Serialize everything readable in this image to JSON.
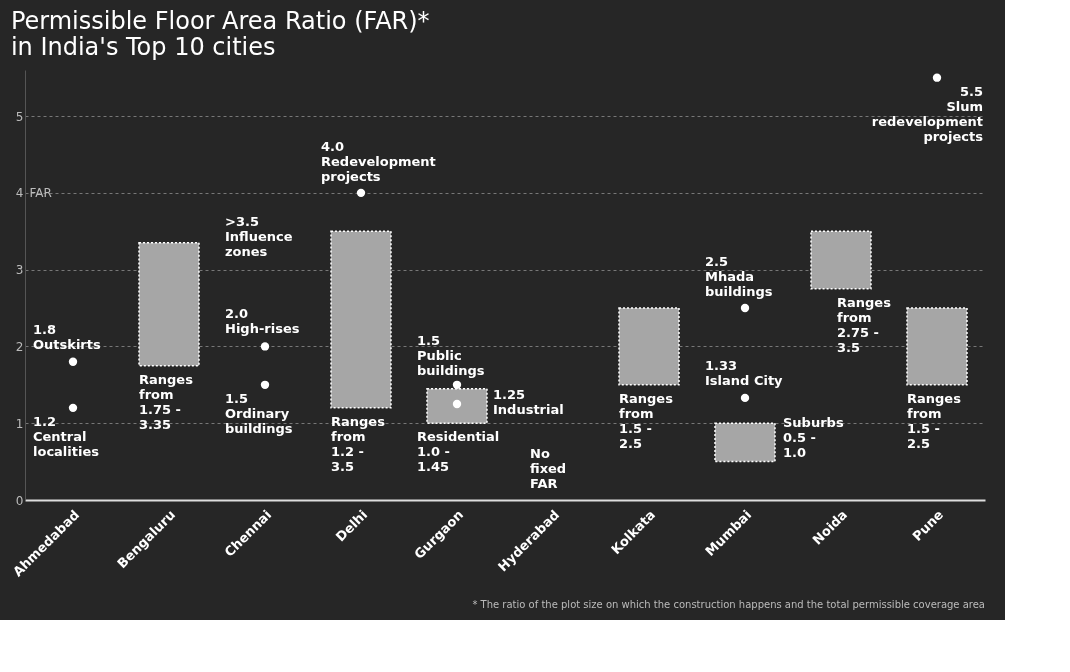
{
  "chart_data": {
    "type": "bar",
    "title": "Permissible Floor Area Ratio (FAR)*\nin India's Top 10 cities",
    "ylabel": "FAR",
    "categories": [
      "Ahmedabad",
      "Bengaluru",
      "Chennai",
      "Delhi",
      "Gurgaon",
      "Hyderabad",
      "Kolkata",
      "Mumbai",
      "Noida",
      "Pune"
    ],
    "series": [
      {
        "type": "bar",
        "base": [
          null,
          1.75,
          null,
          1.2,
          1.0,
          null,
          1.5,
          0.5,
          2.75,
          1.5
        ],
        "color": "#a6a6a6",
        "values": [
          null,
          1.6,
          null,
          2.3,
          0.45,
          null,
          1.0,
          0.5,
          0.75,
          1.0
        ]
      },
      {
        "type": "scatter",
        "color": "#ffffff",
        "x": [
          "Ahmedabad",
          "Ahmedabad",
          "Chennai",
          "Chennai",
          "Delhi",
          "Gurgaon",
          "Gurgaon",
          "Mumbai",
          "Mumbai",
          "Pune"
        ],
        "values": [
          1.8,
          1.2,
          2.0,
          1.5,
          4.0,
          1.5,
          1.25,
          2.5,
          1.33,
          5.5
        ]
      }
    ],
    "marker": "circle",
    "ylim": [
      0,
      5.6
    ],
    "yticks": [
      0,
      1,
      2,
      3,
      4,
      5
    ],
    "grid": "y",
    "annotations": [
      {
        "text": "1.8\nOutskirts",
        "x": "Ahmedabad",
        "y": 1.8
      },
      {
        "text": "1.2\nCentral\nlocalities",
        "x": "Ahmedabad",
        "y": 1.2
      },
      "Ranges\nfrom\n1.75 -\n3.35",
      {
        "text": "2.0\nHigh-rises",
        "x": "Chennai",
        "y": 2.0
      },
      {
        "text": "1.5\nOrdinary\nbuildings",
        "x": "Chennai",
        "y": 1.5
      },
      ">3.5\nInfluence\nzones",
      {
        "text": "4.0\nRedevelopment\nprojects",
        "x": "Delhi",
        "y": 4.0
      },
      "Ranges\nfrom\n1.2 -\n3.5",
      {
        "text": "1.5\nPublic\nbuildings",
        "x": "Gurgaon",
        "y": 1.5
      },
      {
        "text": "1.25\nIndustrial",
        "x": "Gurgaon",
        "y": 1.25
      },
      "Residential\n1.0 -\n1.45",
      "No\nfixed\nFAR",
      "Ranges\nfrom\n1.5 -\n2.5",
      {
        "text": "2.5\nMhada\nbuildings",
        "x": "Mumbai",
        "y": 2.5
      },
      {
        "text": "1.33\nIsland City",
        "x": "Mumbai",
        "y": 1.33
      },
      {
        "text": "Suburbs\n0.5 -\n1.0",
        "x": "Mumbai",
        "y": 0.5
      },
      "Ranges\nfrom\n2.75 -\n3.5",
      {
        "text": "5.5\nSlum\nredevelopment\nprojects",
        "x": "Pune",
        "y": 5.5
      },
      "Ranges\nfrom\n1.5 -\n2.5",
      "* The ratio of the plot size on which the construction happens and the total permissible coverage area"
    ]
  }
}
